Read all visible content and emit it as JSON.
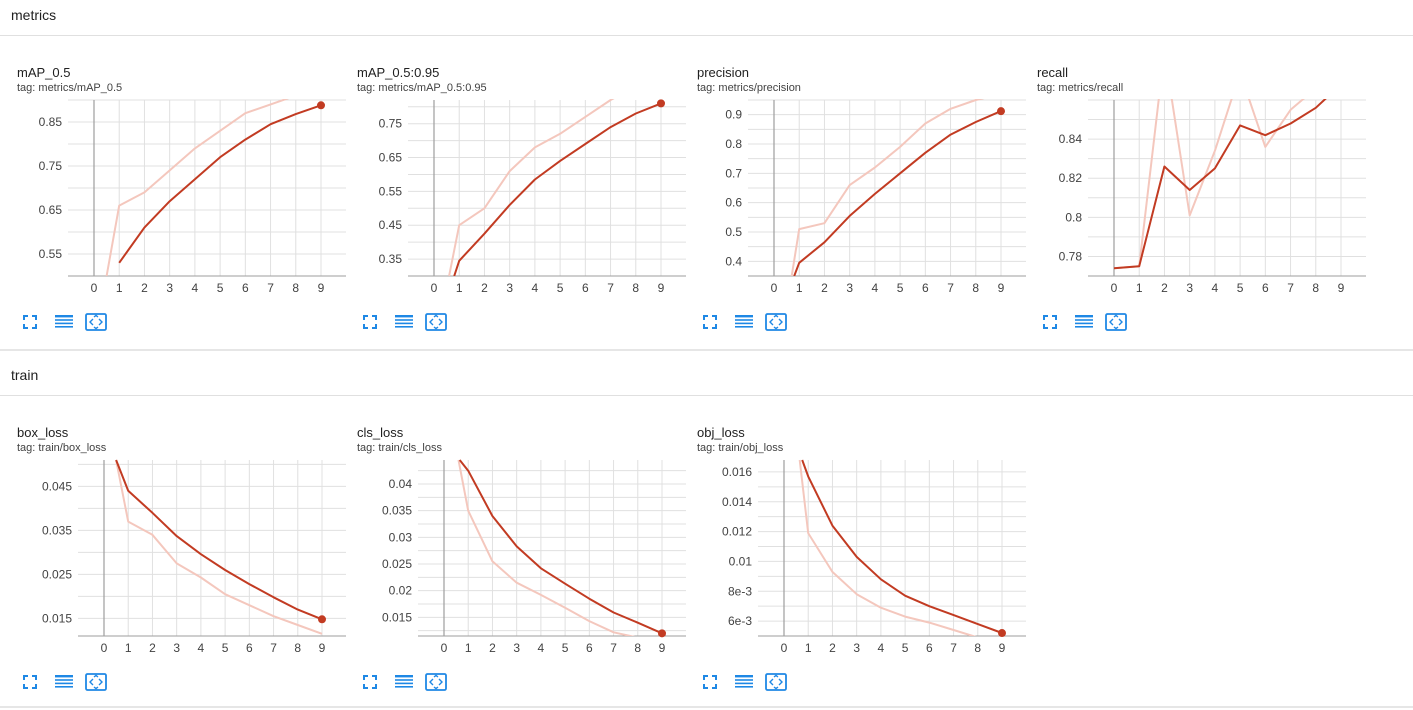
{
  "sections": [
    {
      "title": "metrics"
    },
    {
      "title": "train"
    }
  ],
  "colors": {
    "line": "#c23b22",
    "raw": "#f4c7bd",
    "grid": "#e0e0e0",
    "axis": "#9e9e9e",
    "icon": "#1e88e5"
  },
  "toolbar_icons": [
    "fullscreen-icon",
    "data-table-icon",
    "fit-domain-icon"
  ],
  "x_ticks": [
    0,
    1,
    2,
    3,
    4,
    5,
    6,
    7,
    8,
    9
  ],
  "chart_data": [
    {
      "type": "line",
      "title": "mAP_0.5",
      "tag": "tag: metrics/mAP_0.5",
      "ylim": [
        0.5,
        0.9
      ],
      "yticks": [
        0.55,
        0.65,
        0.75,
        0.85
      ],
      "ytick_labels": [
        "0.55",
        "0.65",
        "0.75",
        "0.85"
      ],
      "series": [
        {
          "kind": "raw",
          "x": [
            0.5,
            1,
            2,
            3,
            4,
            5,
            6,
            7,
            8,
            9
          ],
          "values": [
            0.5,
            0.66,
            0.69,
            0.74,
            0.79,
            0.83,
            0.87,
            0.89,
            0.91,
            0.92
          ]
        },
        {
          "kind": "smoothed",
          "x": [
            1,
            2,
            3,
            4,
            5,
            6,
            7,
            8,
            9
          ],
          "values": [
            0.53,
            0.61,
            0.67,
            0.72,
            0.77,
            0.81,
            0.845,
            0.868,
            0.888
          ]
        }
      ]
    },
    {
      "type": "line",
      "title": "mAP_0.5:0.95",
      "tag": "tag: metrics/mAP_0.5:0.95",
      "ylim": [
        0.3,
        0.82
      ],
      "yticks": [
        0.35,
        0.45,
        0.55,
        0.65,
        0.75
      ],
      "ytick_labels": [
        "0.35",
        "0.45",
        "0.55",
        "0.65",
        "0.75"
      ],
      "series": [
        {
          "kind": "raw",
          "x": [
            0.6,
            1,
            2,
            3,
            4,
            5,
            6,
            7,
            8,
            9
          ],
          "values": [
            0.3,
            0.45,
            0.5,
            0.61,
            0.68,
            0.72,
            0.77,
            0.82,
            0.86,
            0.88
          ]
        },
        {
          "kind": "smoothed",
          "x": [
            0.8,
            1,
            2,
            3,
            4,
            5,
            6,
            7,
            8,
            9
          ],
          "values": [
            0.3,
            0.345,
            0.425,
            0.51,
            0.585,
            0.64,
            0.69,
            0.74,
            0.78,
            0.81
          ]
        }
      ]
    },
    {
      "type": "line",
      "title": "precision",
      "tag": "tag: metrics/precision",
      "ylim": [
        0.35,
        0.95
      ],
      "yticks": [
        0.4,
        0.5,
        0.6,
        0.7,
        0.8,
        0.9
      ],
      "ytick_labels": [
        "0.4",
        "0.5",
        "0.6",
        "0.7",
        "0.8",
        "0.9"
      ],
      "series": [
        {
          "kind": "raw",
          "x": [
            0.7,
            1,
            2,
            3,
            4,
            5,
            6,
            7,
            8,
            9
          ],
          "values": [
            0.35,
            0.51,
            0.53,
            0.66,
            0.72,
            0.79,
            0.87,
            0.92,
            0.95,
            0.97
          ]
        },
        {
          "kind": "smoothed",
          "x": [
            0.8,
            1,
            2,
            3,
            4,
            5,
            6,
            7,
            8,
            9
          ],
          "values": [
            0.35,
            0.395,
            0.465,
            0.555,
            0.63,
            0.7,
            0.77,
            0.832,
            0.875,
            0.912
          ]
        }
      ]
    },
    {
      "type": "line",
      "title": "recall",
      "tag": "tag: metrics/recall",
      "ylim": [
        0.77,
        0.86
      ],
      "yticks": [
        0.78,
        0.8,
        0.82,
        0.84
      ],
      "ytick_labels": [
        "0.78",
        "0.8",
        "0.82",
        "0.84"
      ],
      "series": [
        {
          "kind": "raw",
          "x": [
            0,
            1,
            2,
            3,
            4,
            5,
            6,
            7,
            8,
            9
          ],
          "values": [
            0.774,
            0.775,
            0.885,
            0.801,
            0.834,
            0.874,
            0.836,
            0.855,
            0.866,
            0.874
          ]
        },
        {
          "kind": "smoothed",
          "x": [
            0,
            1,
            2,
            3,
            4,
            5,
            6,
            7,
            8,
            9
          ],
          "values": [
            0.774,
            0.775,
            0.826,
            0.814,
            0.825,
            0.847,
            0.842,
            0.848,
            0.856,
            0.868
          ]
        }
      ]
    },
    {
      "type": "line",
      "title": "box_loss",
      "tag": "tag: train/box_loss",
      "ylim": [
        0.011,
        0.051
      ],
      "yticks": [
        0.015,
        0.025,
        0.035,
        0.045
      ],
      "ytick_labels": [
        "0.015",
        "0.025",
        "0.035",
        "0.045"
      ],
      "series": [
        {
          "kind": "raw",
          "x": [
            0.5,
            1,
            2,
            3,
            4,
            5,
            6,
            7,
            8,
            9
          ],
          "values": [
            0.051,
            0.037,
            0.034,
            0.0275,
            0.0243,
            0.0205,
            0.018,
            0.0155,
            0.0135,
            0.0115
          ]
        },
        {
          "kind": "smoothed",
          "x": [
            0.5,
            1,
            2,
            3,
            4,
            5,
            6,
            7,
            8,
            9
          ],
          "values": [
            0.051,
            0.044,
            0.039,
            0.0337,
            0.0296,
            0.026,
            0.0228,
            0.0198,
            0.017,
            0.0148
          ]
        }
      ]
    },
    {
      "type": "line",
      "title": "cls_loss",
      "tag": "tag: train/cls_loss",
      "ylim": [
        0.0115,
        0.0445
      ],
      "yticks": [
        0.015,
        0.02,
        0.025,
        0.03,
        0.035,
        0.04
      ],
      "ytick_labels": [
        "0.015",
        "0.02",
        "0.025",
        "0.03",
        "0.035",
        "0.04"
      ],
      "series": [
        {
          "kind": "raw",
          "x": [
            0.6,
            1,
            2,
            3,
            4,
            5,
            6,
            7,
            8,
            9
          ],
          "values": [
            0.0445,
            0.035,
            0.0255,
            0.0215,
            0.0192,
            0.0168,
            0.0143,
            0.0122,
            0.0112,
            0.0095
          ]
        },
        {
          "kind": "smoothed",
          "x": [
            0.65,
            1,
            2,
            3,
            4,
            5,
            6,
            7,
            8,
            9
          ],
          "values": [
            0.0445,
            0.0425,
            0.034,
            0.0283,
            0.0242,
            0.0213,
            0.0185,
            0.0159,
            0.014,
            0.012
          ]
        }
      ]
    },
    {
      "type": "line",
      "title": "obj_loss",
      "tag": "tag: train/obj_loss",
      "ylim": [
        0.005,
        0.0168
      ],
      "yticks": [
        0.006,
        0.008,
        0.01,
        0.012,
        0.014,
        0.016
      ],
      "ytick_labels": [
        "6e-3",
        "8e-3",
        "0.01",
        "0.012",
        "0.014",
        "0.016"
      ],
      "series": [
        {
          "kind": "raw",
          "x": [
            0.65,
            1,
            2,
            3,
            4,
            5,
            6,
            7,
            8,
            9
          ],
          "values": [
            0.0168,
            0.0119,
            0.0093,
            0.0078,
            0.0069,
            0.0063,
            0.0059,
            0.0054,
            0.0049,
            0.0046
          ]
        },
        {
          "kind": "smoothed",
          "x": [
            0.75,
            1,
            2,
            3,
            4,
            5,
            6,
            7,
            8,
            9
          ],
          "values": [
            0.0168,
            0.0157,
            0.0124,
            0.0103,
            0.0088,
            0.0077,
            0.007,
            0.0064,
            0.0058,
            0.0052
          ]
        }
      ]
    }
  ]
}
